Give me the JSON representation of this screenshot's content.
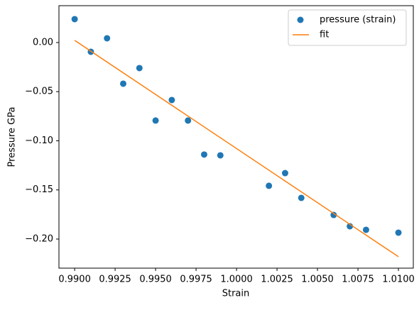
{
  "chart_data": {
    "type": "scatter",
    "x_label": "Strain",
    "y_label": "Pressure GPa",
    "xlim": [
      0.98903,
      1.01092
    ],
    "ylim": [
      -0.2296,
      0.0375
    ],
    "xticks": [
      {
        "value": 0.99,
        "label": "0.9900"
      },
      {
        "value": 0.9925,
        "label": "0.9925"
      },
      {
        "value": 0.995,
        "label": "0.9950"
      },
      {
        "value": 0.9975,
        "label": "0.9975"
      },
      {
        "value": 1.0,
        "label": "1.0000"
      },
      {
        "value": 1.0025,
        "label": "1.0025"
      },
      {
        "value": 1.005,
        "label": "1.0050"
      },
      {
        "value": 1.0075,
        "label": "1.0075"
      },
      {
        "value": 1.01,
        "label": "1.0100"
      }
    ],
    "yticks": [
      {
        "value": 0,
        "label": "0.00"
      },
      {
        "value": -0.05,
        "label": "−0.05"
      },
      {
        "value": -0.1,
        "label": "−0.10"
      },
      {
        "value": -0.15,
        "label": "−0.15"
      },
      {
        "value": -0.2,
        "label": "−0.20"
      }
    ],
    "legend": "upper right",
    "series": [
      {
        "name": "pressure (strain)",
        "type": "scatter",
        "color": "#1f77b4",
        "x": [
          0.99,
          0.991,
          0.992,
          0.993,
          0.994,
          0.995,
          0.996,
          0.997,
          0.998,
          0.999,
          1.002,
          1.003,
          1.004,
          1.006,
          1.007,
          1.008,
          1.01
        ],
        "values": [
          0.0238,
          -0.0094,
          0.0043,
          -0.0419,
          -0.026,
          -0.0794,
          -0.0585,
          -0.0794,
          -0.114,
          -0.1148,
          -0.1458,
          -0.1329,
          -0.1581,
          -0.1755,
          -0.187,
          -0.1906,
          -0.1935
        ]
      },
      {
        "name": "fit",
        "type": "line",
        "color": "#ff7f0e",
        "x": [
          0.99,
          1.01
        ],
        "values": [
          0.0022,
          -0.218
        ]
      }
    ]
  }
}
